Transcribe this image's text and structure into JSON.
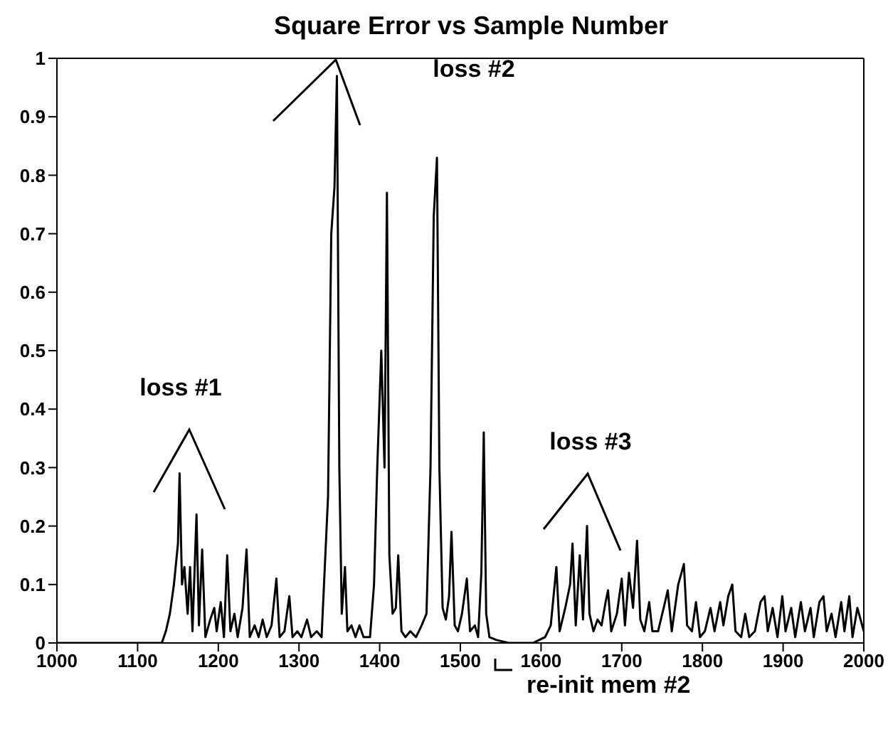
{
  "chart_data": {
    "type": "line",
    "title": "Square Error vs Sample Number",
    "x": [
      1000,
      1130,
      1135,
      1140,
      1145,
      1150,
      1152,
      1155,
      1158,
      1162,
      1165,
      1168,
      1173,
      1176,
      1180,
      1184,
      1190,
      1195,
      1198,
      1203,
      1207,
      1211,
      1215,
      1220,
      1224,
      1230,
      1235,
      1239,
      1245,
      1250,
      1255,
      1260,
      1266,
      1272,
      1276,
      1282,
      1288,
      1292,
      1298,
      1303,
      1310,
      1315,
      1322,
      1328,
      1333,
      1336,
      1340,
      1344,
      1347,
      1350,
      1353,
      1357,
      1360,
      1365,
      1370,
      1375,
      1380,
      1388,
      1393,
      1397,
      1402,
      1406,
      1409,
      1412,
      1416,
      1420,
      1423,
      1427,
      1432,
      1438,
      1445,
      1452,
      1458,
      1463,
      1467,
      1471,
      1474,
      1478,
      1482,
      1486,
      1489,
      1493,
      1497,
      1502,
      1508,
      1512,
      1518,
      1522,
      1526,
      1529,
      1532,
      1536,
      1545,
      1560,
      1590,
      1605,
      1612,
      1619,
      1623,
      1630,
      1636,
      1639,
      1643,
      1648,
      1652,
      1657,
      1660,
      1665,
      1670,
      1675,
      1680,
      1683,
      1687,
      1694,
      1700,
      1704,
      1709,
      1714,
      1719,
      1723,
      1728,
      1734,
      1738,
      1745,
      1752,
      1757,
      1762,
      1770,
      1777,
      1781,
      1787,
      1792,
      1797,
      1803,
      1810,
      1815,
      1822,
      1826,
      1832,
      1837,
      1841,
      1848,
      1853,
      1858,
      1865,
      1872,
      1877,
      1881,
      1887,
      1893,
      1899,
      1903,
      1910,
      1915,
      1922,
      1927,
      1934,
      1938,
      1945,
      1950,
      1954,
      1960,
      1965,
      1972,
      1976,
      1982,
      1986,
      1992,
      2000
    ],
    "series": [
      {
        "color": "#000000",
        "values": [
          0,
          0,
          0.02,
          0.05,
          0.1,
          0.17,
          0.29,
          0.1,
          0.13,
          0.05,
          0.13,
          0.02,
          0.22,
          0.03,
          0.16,
          0.01,
          0.04,
          0.06,
          0.02,
          0.07,
          0.01,
          0.15,
          0.02,
          0.05,
          0.01,
          0.06,
          0.16,
          0.01,
          0.03,
          0.01,
          0.04,
          0.01,
          0.03,
          0.11,
          0.01,
          0.02,
          0.08,
          0.01,
          0.02,
          0.01,
          0.04,
          0.01,
          0.02,
          0.01,
          0.16,
          0.25,
          0.7,
          0.78,
          0.97,
          0.3,
          0.05,
          0.13,
          0.02,
          0.03,
          0.01,
          0.03,
          0.01,
          0.01,
          0.1,
          0.3,
          0.5,
          0.3,
          0.77,
          0.15,
          0.05,
          0.06,
          0.15,
          0.02,
          0.01,
          0.02,
          0.01,
          0.03,
          0.05,
          0.3,
          0.73,
          0.83,
          0.3,
          0.06,
          0.04,
          0.08,
          0.19,
          0.03,
          0.02,
          0.05,
          0.11,
          0.02,
          0.03,
          0.01,
          0.12,
          0.36,
          0.05,
          0.01,
          0.005,
          0,
          0,
          0.01,
          0.03,
          0.13,
          0.02,
          0.06,
          0.1,
          0.17,
          0.03,
          0.15,
          0.04,
          0.2,
          0.05,
          0.02,
          0.04,
          0.03,
          0.07,
          0.09,
          0.02,
          0.05,
          0.11,
          0.03,
          0.12,
          0.06,
          0.175,
          0.04,
          0.02,
          0.07,
          0.02,
          0.02,
          0.06,
          0.09,
          0.02,
          0.1,
          0.135,
          0.03,
          0.02,
          0.07,
          0.01,
          0.02,
          0.06,
          0.02,
          0.07,
          0.03,
          0.08,
          0.1,
          0.02,
          0.01,
          0.05,
          0.01,
          0.02,
          0.07,
          0.08,
          0.02,
          0.06,
          0.01,
          0.08,
          0.02,
          0.06,
          0.01,
          0.07,
          0.02,
          0.06,
          0.01,
          0.07,
          0.08,
          0.02,
          0.05,
          0.01,
          0.07,
          0.02,
          0.08,
          0.01,
          0.06,
          0.02
        ]
      }
    ],
    "xlim": [
      1000,
      2000
    ],
    "xticks": [
      1000,
      1100,
      1200,
      1300,
      1400,
      1500,
      1600,
      1700,
      1800,
      1900,
      2000
    ],
    "ylim": [
      0,
      1
    ],
    "yticks": [
      0,
      0.1,
      0.2,
      0.3,
      0.4,
      0.5,
      0.6,
      0.7,
      0.8,
      0.9,
      1
    ],
    "annotations": [
      "loss #1",
      "loss #2",
      "loss #3",
      "re-init mem #2"
    ],
    "grid": false,
    "legend": false,
    "marker": "none",
    "line_style": "solid"
  }
}
